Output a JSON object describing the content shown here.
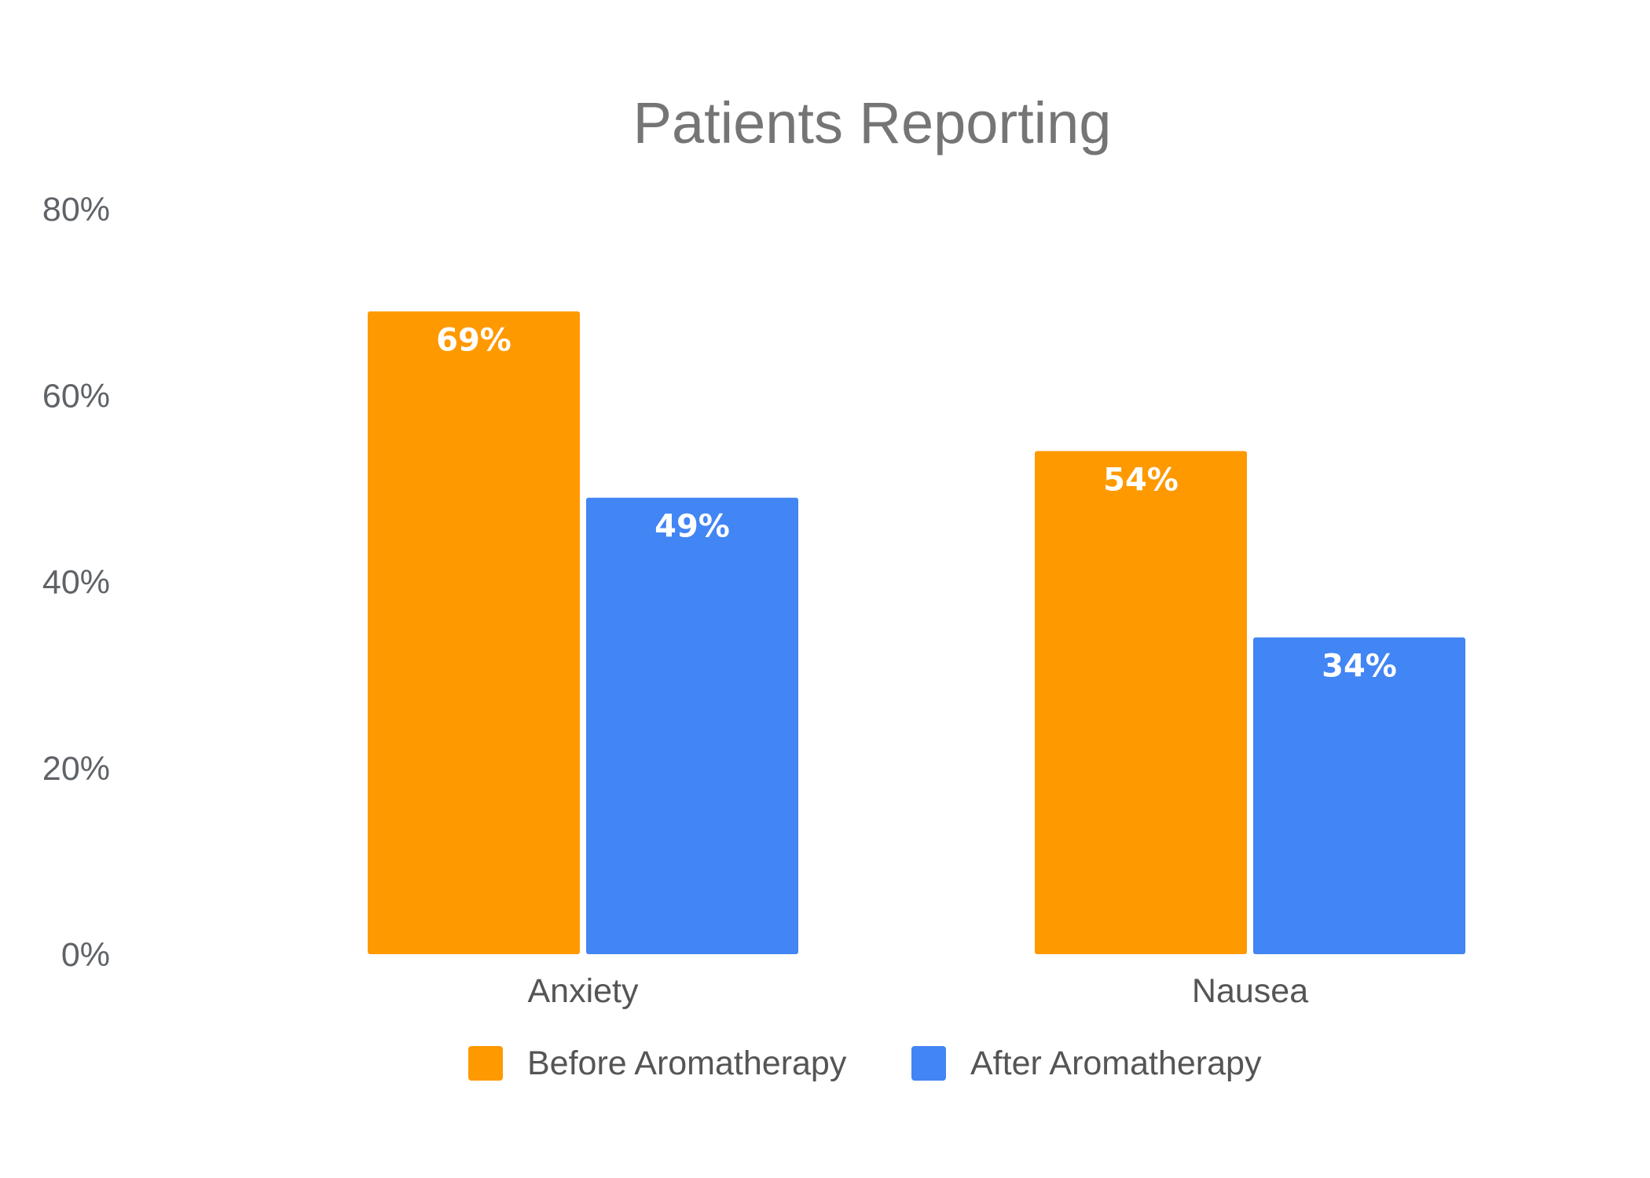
{
  "chart_data": {
    "type": "bar",
    "title": "Patients Reporting",
    "categories": [
      "Anxiety",
      "Nausea"
    ],
    "series": [
      {
        "name": "Before Aromatherapy",
        "values": [
          69,
          54
        ],
        "labels": [
          "69%",
          "54%"
        ],
        "color": "#ff9900"
      },
      {
        "name": "After Aromatherapy",
        "values": [
          49,
          34
        ],
        "labels": [
          "49%",
          "34%"
        ],
        "color": "#4285f4"
      }
    ],
    "yticks": [
      "0%",
      "20%",
      "40%",
      "60%",
      "80%"
    ],
    "ylim": [
      0,
      80
    ],
    "grid": false,
    "legend_position": "bottom"
  }
}
